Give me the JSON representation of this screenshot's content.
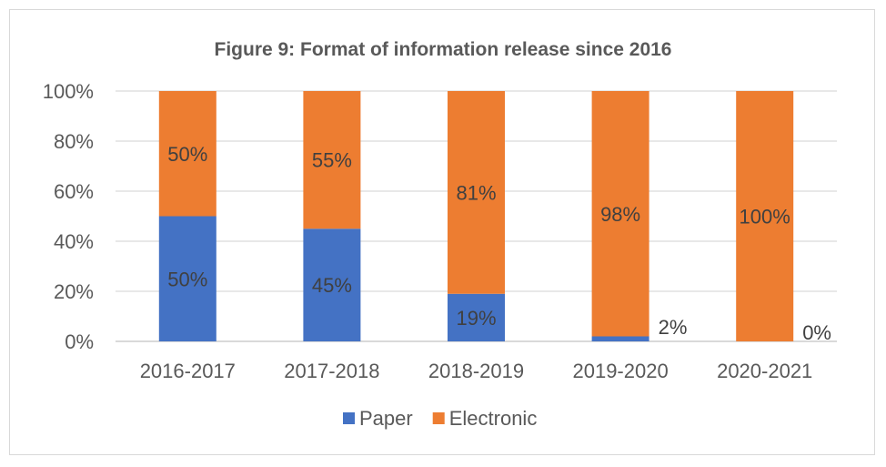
{
  "chart_data": {
    "type": "bar",
    "stacked": true,
    "percent_stacked": true,
    "title": "Figure 9: Format of information release since 2016",
    "xlabel": "",
    "ylabel": "",
    "ylim": [
      0,
      100
    ],
    "yticks": [
      "0%",
      "20%",
      "40%",
      "60%",
      "80%",
      "100%"
    ],
    "grid": true,
    "legend_position": "bottom",
    "categories": [
      "2016-2017",
      "2017-2018",
      "2018-2019",
      "2019-2020",
      "2020-2021"
    ],
    "series": [
      {
        "name": "Paper",
        "color": "#4472c4",
        "values": [
          50,
          45,
          19,
          2,
          0
        ],
        "labels": [
          "50%",
          "45%",
          "19%",
          "2%",
          "0%"
        ]
      },
      {
        "name": "Electronic",
        "color": "#ed7d31",
        "values": [
          50,
          55,
          81,
          98,
          100
        ],
        "labels": [
          "50%",
          "55%",
          "81%",
          "98%",
          "100%"
        ]
      }
    ]
  }
}
